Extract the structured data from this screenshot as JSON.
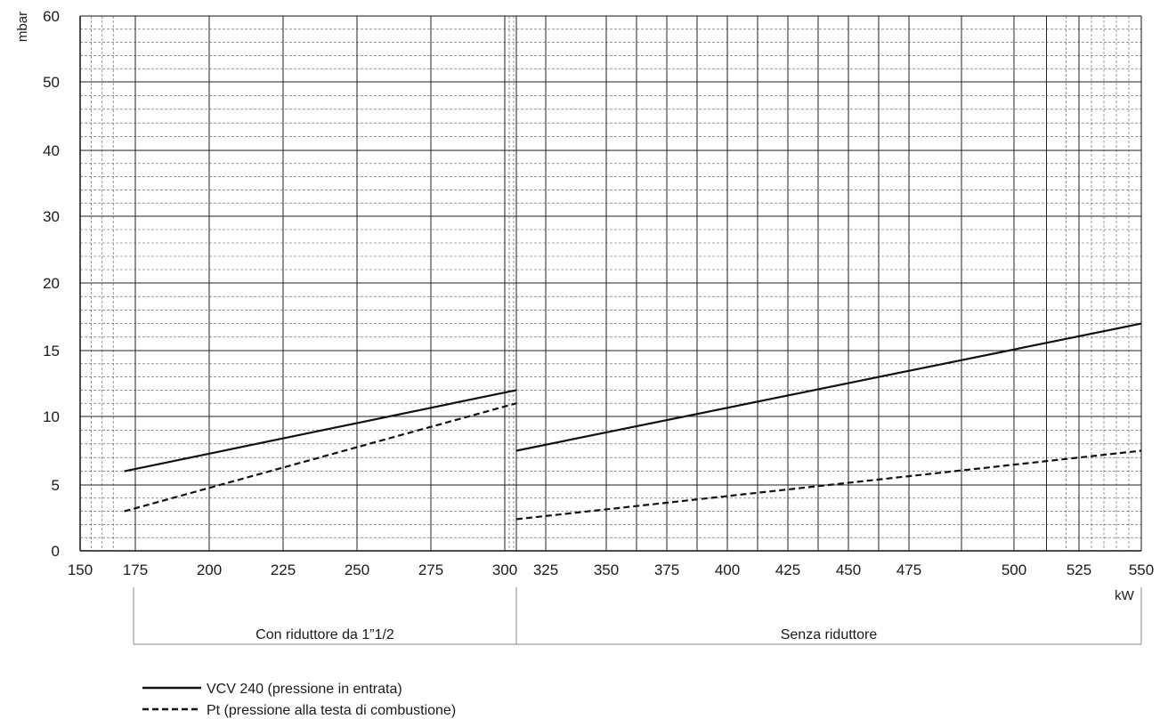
{
  "chart_data": {
    "type": "line",
    "xlabel": "kW",
    "ylabel": "mbar",
    "xlim": [
      150,
      550
    ],
    "y_tick_labels": [
      0,
      5,
      10,
      15,
      20,
      30,
      40,
      50,
      60
    ],
    "x_tick_labels": [
      150,
      175,
      200,
      225,
      250,
      275,
      300,
      325,
      350,
      375,
      400,
      425,
      450,
      475,
      500,
      525,
      550
    ],
    "grid": true,
    "ranges": [
      {
        "label": "Con riduttore da 1”1/2",
        "x": [
          150,
          313
        ]
      },
      {
        "label": "Senza riduttore",
        "x": [
          313,
          550
        ]
      }
    ],
    "series": [
      {
        "name": "VCV 240 (pressione in entrata)",
        "style": "solid",
        "segments": [
          [
            [
              170,
              6.0
            ],
            [
              313,
              12.0
            ]
          ],
          [
            [
              313,
              7.5
            ],
            [
              550,
              17.0
            ]
          ]
        ]
      },
      {
        "name": "Pt (pressione alla testa di combustione)",
        "style": "dashed",
        "segments": [
          [
            [
              170,
              3.0
            ],
            [
              313,
              11.0
            ]
          ],
          [
            [
              313,
              2.4
            ],
            [
              550,
              7.5
            ]
          ]
        ]
      }
    ]
  }
}
